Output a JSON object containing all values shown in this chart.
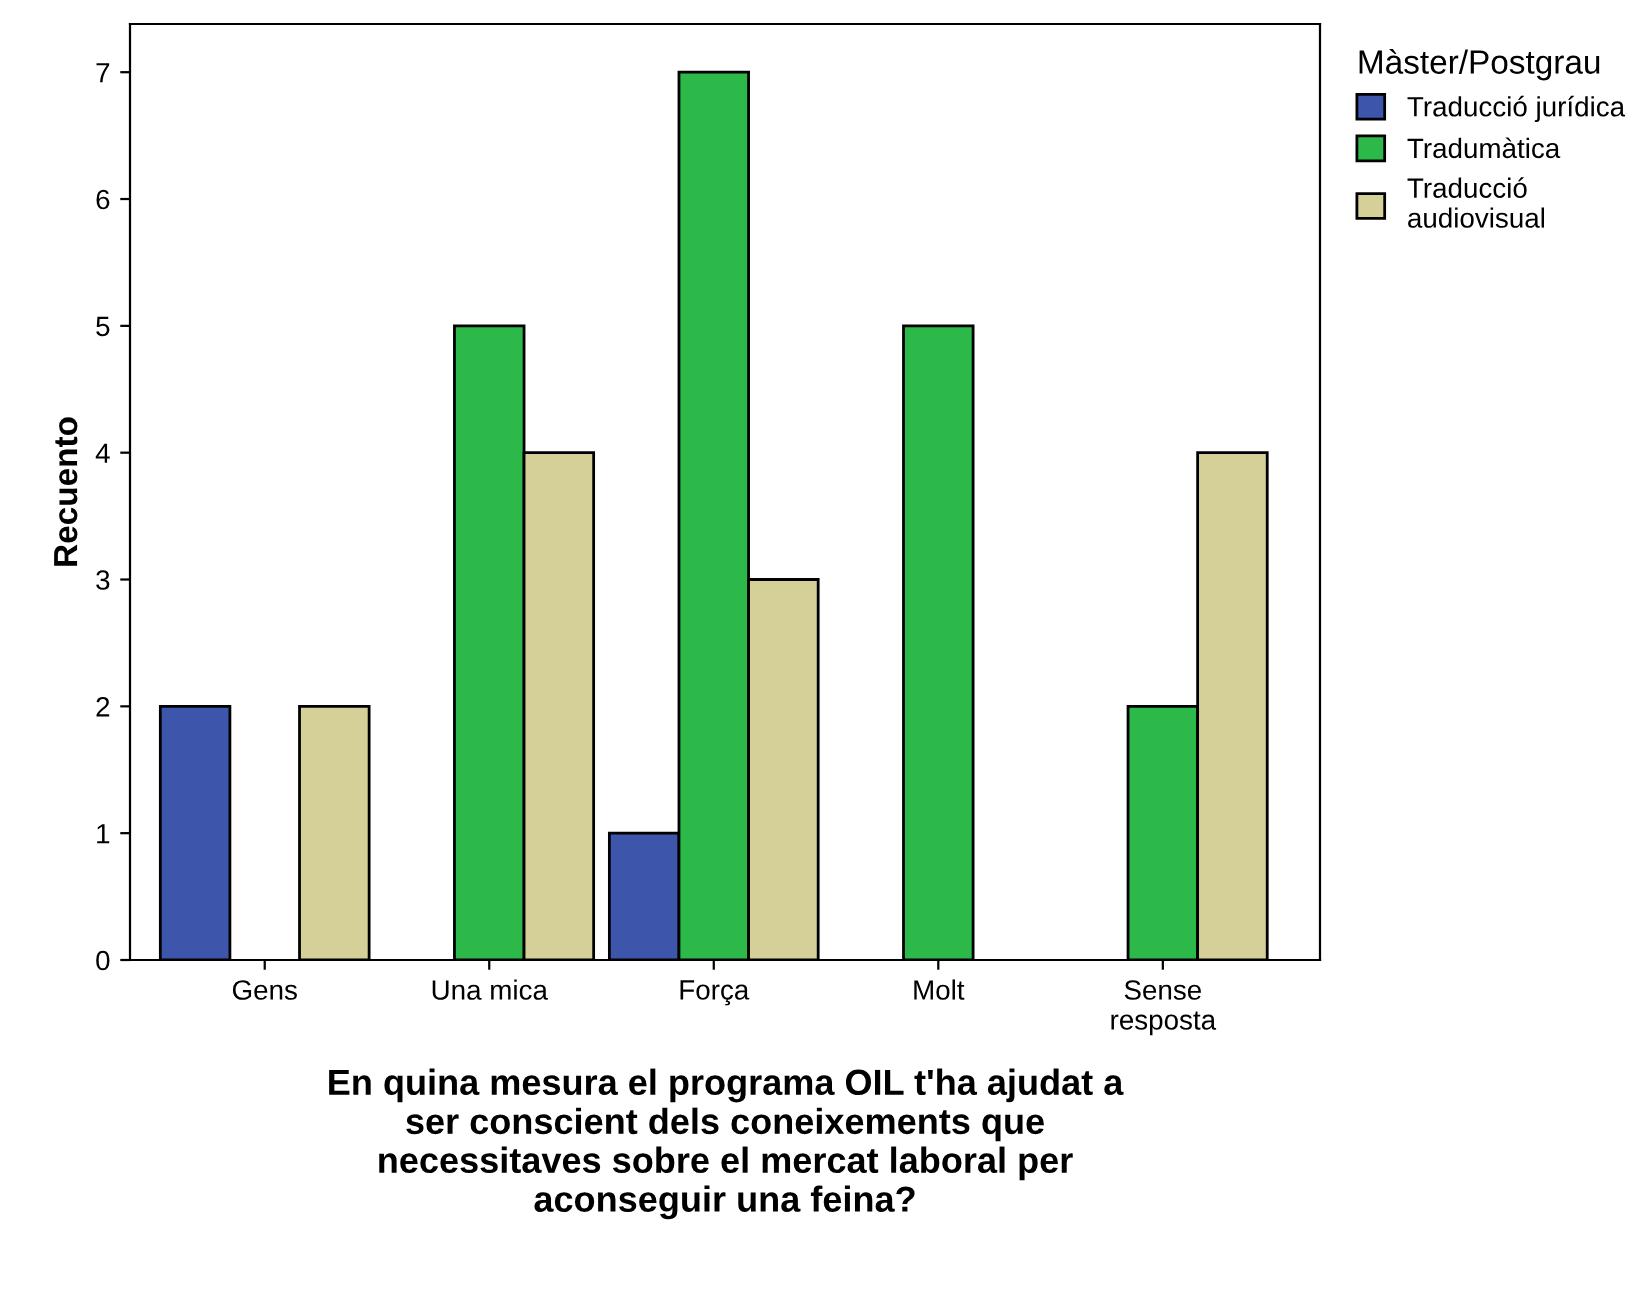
{
  "chart_data": {
    "type": "bar",
    "xlabel": "En quina mesura el programa OIL t'ha ajudat a\nser conscient dels coneixements que\nnecessitaves sobre el mercat laboral per\naconseguir una feina?",
    "ylabel": "Recuento",
    "legend_title": "Màster/Postgrau",
    "categories": [
      "Gens",
      "Una mica",
      "Força",
      "Molt",
      "Sense\nresposta"
    ],
    "series": [
      {
        "name": "Traducció jurídica",
        "color": "#3d55ab",
        "values": [
          2,
          null,
          1,
          null,
          null
        ]
      },
      {
        "name": "Tradumàtica",
        "color": "#2db84a",
        "values": [
          null,
          5,
          7,
          5,
          2
        ]
      },
      {
        "name": "Traducció\naudiovisual",
        "color": "#d5cf98",
        "values": [
          2,
          4,
          3,
          null,
          4
        ]
      }
    ],
    "ylim": [
      0,
      7.38
    ],
    "yticks": [
      0,
      1,
      2,
      3,
      4,
      5,
      6,
      7
    ],
    "grid": false,
    "legend": "top right"
  }
}
